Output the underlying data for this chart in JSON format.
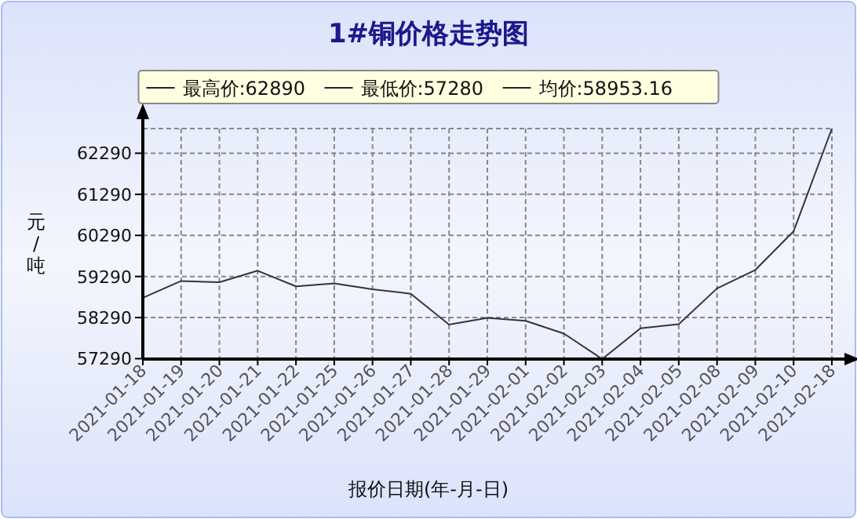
{
  "chart_data": {
    "type": "line",
    "title": "1#铜价格走势图",
    "xlabel": "报价日期(年-月-日)",
    "ylabel": "元/吨",
    "annotations": [
      "最高价:62890",
      "最低价:57280",
      "均价:58953.16"
    ],
    "categories": [
      "2021-01-18",
      "2021-01-19",
      "2021-01-20",
      "2021-01-21",
      "2021-01-22",
      "2021-01-25",
      "2021-01-26",
      "2021-01-27",
      "2021-01-28",
      "2021-01-29",
      "2021-02-01",
      "2021-02-02",
      "2021-02-03",
      "2021-02-04",
      "2021-02-05",
      "2021-02-08",
      "2021-02-09",
      "2021-02-10",
      "2021-02-18"
    ],
    "series": [
      {
        "color": "#333344",
        "values": [
          58770,
          59180,
          59150,
          59430,
          59050,
          59120,
          58980,
          58870,
          58120,
          58280,
          58210,
          57900,
          57280,
          58030,
          58130,
          59000,
          59450,
          60390,
          62890
        ]
      }
    ],
    "ylim": [
      57280,
      62890
    ],
    "yticks": [
      57290,
      58290,
      59290,
      60290,
      61290,
      62290
    ],
    "grid": true,
    "marker": "none",
    "line_style": "solid"
  }
}
